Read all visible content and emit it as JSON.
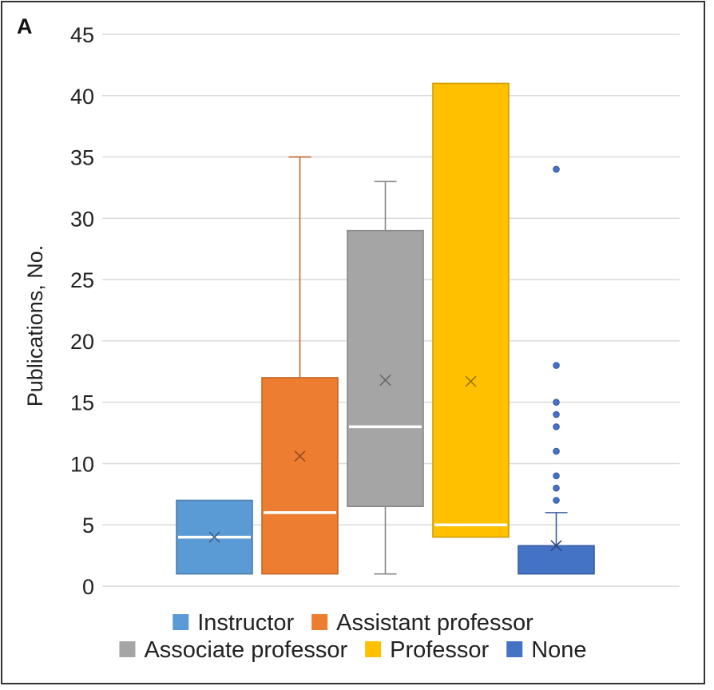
{
  "chart_data": {
    "type": "box",
    "panel_label": "A",
    "ylabel": "Publications, No.",
    "xlabel": "",
    "ylim": [
      0,
      45
    ],
    "yticks": [
      0,
      5,
      10,
      15,
      20,
      25,
      30,
      35,
      40,
      45
    ],
    "grid": true,
    "legend_position": "bottom",
    "series": [
      {
        "name": "Instructor",
        "color": "#5B9BD5",
        "min": 1,
        "q1": 1,
        "median": 4,
        "q3": 7,
        "max": 7,
        "mean": 4,
        "outliers": []
      },
      {
        "name": "Assistant professor",
        "color": "#ED7D31",
        "min": 1,
        "q1": 1,
        "median": 6,
        "q3": 17,
        "max": 35,
        "mean": 10.6,
        "outliers": []
      },
      {
        "name": "Associate professor",
        "color": "#A5A5A5",
        "min": 1,
        "q1": 6.5,
        "median": 13,
        "q3": 29,
        "max": 33,
        "mean": 16.8,
        "outliers": []
      },
      {
        "name": "Professor",
        "color": "#FFC000",
        "min": 4,
        "q1": 4,
        "median": 5,
        "q3": 41,
        "max": 41,
        "mean": 16.7,
        "outliers": []
      },
      {
        "name": "None",
        "color": "#4472C4",
        "min": 1,
        "q1": 1,
        "median": 1,
        "q3": 3.3,
        "max": 6,
        "mean": 3.3,
        "outliers": [
          7,
          8,
          9,
          11,
          13,
          14,
          15,
          18,
          34
        ]
      }
    ]
  }
}
